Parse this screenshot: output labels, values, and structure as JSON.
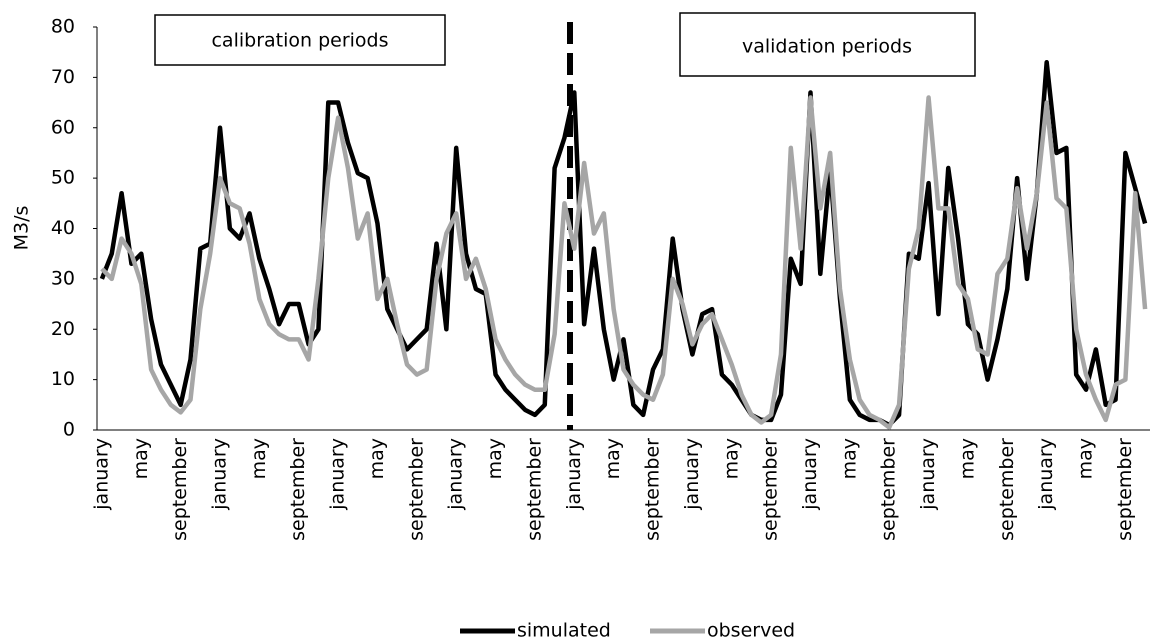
{
  "chart_data": {
    "type": "line",
    "y_label": "M3/s",
    "annotations": [
      "calibration periods",
      "validation periods"
    ],
    "ylim": [
      0,
      80
    ],
    "yticks": [
      0,
      10,
      20,
      30,
      40,
      50,
      60,
      70,
      80
    ],
    "categories": [
      "january",
      null,
      null,
      null,
      "may",
      null,
      null,
      null,
      "september",
      null,
      null,
      null,
      "january",
      null,
      null,
      null,
      "may",
      null,
      null,
      null,
      "september",
      null,
      null,
      null,
      "january",
      null,
      null,
      null,
      "may",
      null,
      null,
      null,
      "september",
      null,
      null,
      null,
      "january",
      null,
      null,
      null,
      "may",
      null,
      null,
      null,
      "september",
      null,
      null,
      null,
      "january",
      null,
      null,
      null,
      "may",
      null,
      null,
      null,
      "september",
      null,
      null,
      null,
      "january",
      null,
      null,
      null,
      "may",
      null,
      null,
      null,
      "september",
      null,
      null,
      null,
      "january",
      null,
      null,
      null,
      "may",
      null,
      null,
      null,
      "september",
      null,
      null,
      null,
      "january",
      null,
      null,
      null,
      "may",
      null,
      null,
      null,
      "september",
      null,
      null,
      null,
      "january",
      null,
      null,
      null,
      "may",
      null,
      null,
      null,
      "september",
      null,
      null
    ],
    "series": [
      {
        "name": "simulated",
        "color": "#000000",
        "values": [
          30,
          35,
          47,
          33,
          35,
          22,
          13,
          9,
          5,
          14,
          36,
          37,
          60,
          40,
          38,
          43,
          34,
          28,
          21,
          25,
          25,
          17,
          20,
          65,
          65,
          57,
          51,
          50,
          41,
          24,
          20,
          16,
          18,
          20,
          37,
          20,
          56,
          35,
          28,
          27,
          11,
          8,
          6,
          4,
          3,
          5,
          52,
          58,
          67,
          21,
          36,
          20,
          10,
          18,
          5,
          3,
          12,
          16,
          38,
          24,
          15,
          23,
          24,
          11,
          9,
          6,
          3,
          2,
          2,
          7,
          34,
          29,
          67,
          31,
          52,
          26,
          6,
          3,
          2,
          2,
          1,
          3,
          35,
          34,
          49,
          23,
          52,
          38,
          21,
          19,
          10,
          18,
          28,
          50,
          30,
          47,
          73,
          55,
          56,
          11,
          8,
          16,
          5,
          6,
          55,
          48,
          41
        ]
      },
      {
        "name": "observed",
        "color": "#a6a6a6",
        "values": [
          32,
          30,
          38,
          35,
          29,
          12,
          8,
          5,
          3.5,
          6,
          24,
          35,
          50,
          45,
          44,
          37,
          26,
          21,
          19,
          18,
          18,
          14,
          30,
          50,
          62,
          52,
          38,
          43,
          26,
          30,
          21,
          13,
          11,
          12,
          30,
          39,
          43,
          30,
          34,
          28,
          18,
          14,
          11,
          9,
          8,
          8,
          19,
          45,
          36,
          53,
          39,
          43,
          24,
          12,
          9,
          7,
          6,
          11,
          30,
          25,
          17,
          21,
          23,
          18,
          13,
          7,
          3,
          1.5,
          3,
          15,
          56,
          36,
          66,
          44,
          55,
          28,
          14,
          6,
          3,
          2,
          0.5,
          5,
          32,
          40,
          66,
          44,
          44,
          29,
          26,
          16,
          15,
          31,
          34,
          48,
          36,
          47,
          65,
          46,
          44,
          20,
          11,
          6,
          2,
          9,
          10,
          47,
          24
        ]
      }
    ]
  }
}
